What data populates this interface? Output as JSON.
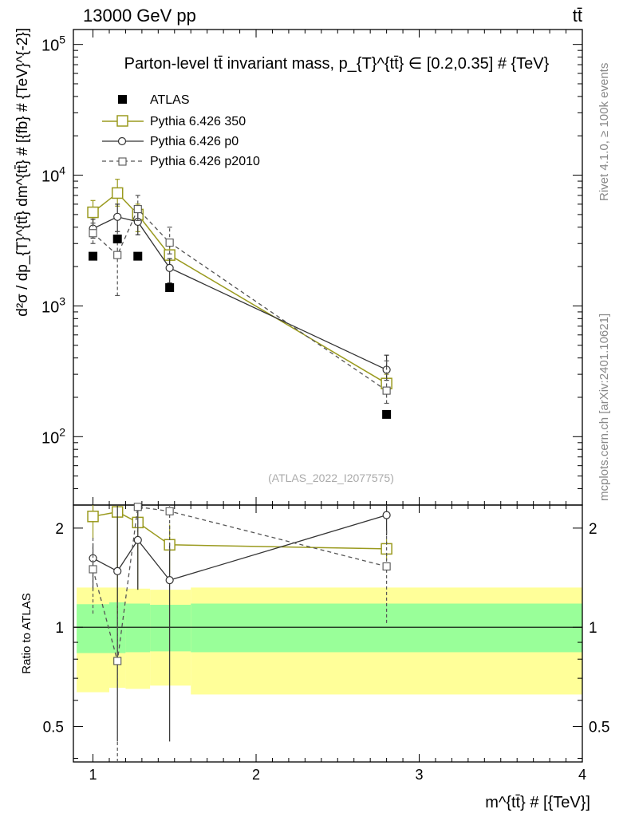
{
  "header": {
    "left": "13000 GeV pp",
    "right": "tt̄"
  },
  "side_texts": {
    "rivet": "Rivet 4.1.0, ≥ 100k events",
    "mcplots": "mcplots.cern.ch [arXiv:2401.10621]"
  },
  "chart_data": {
    "type": "line",
    "title": "Parton-level tt̄ invariant mass, p_{T}^{tt̄} ∈ [0.2,0.35] # {TeV}",
    "watermark": "(ATLAS_2022_I2077575)",
    "xlabel": "m^{tt̄} # [{TeV}]",
    "ylabel": "d²σ / dp_{T}^{tt̄} dm^{tt̄} # [{fb} # {TeV}^{-2}]",
    "ratio_ylabel": "Ratio to ATLAS",
    "xlim": [
      0.88,
      4.0
    ],
    "ylim": [
      30,
      130000
    ],
    "yscale": "log",
    "ratio_ylim": [
      0.39,
      2.35
    ],
    "x_ticks": [
      1,
      2,
      3,
      4
    ],
    "y_tick_labels": [
      {
        "base": "10",
        "exp": "2",
        "value": 100
      },
      {
        "base": "10",
        "exp": "3",
        "value": 1000
      },
      {
        "base": "10",
        "exp": "4",
        "value": 10000
      },
      {
        "base": "10",
        "exp": "5",
        "value": 100000
      }
    ],
    "ratio_ticks": [
      0.5,
      1,
      2
    ],
    "x": [
      1.0,
      1.15,
      1.275,
      1.47,
      2.8
    ],
    "reference": {
      "name": "ATLAS",
      "values": [
        2400,
        3250,
        2400,
        1380,
        148
      ],
      "band_edges": [
        0.9,
        1.1,
        1.2,
        1.35,
        1.6,
        4.0
      ],
      "band_inner": [
        [
          0.835,
          1.175
        ],
        [
          0.835,
          1.19
        ],
        [
          0.84,
          1.18
        ],
        [
          0.845,
          1.17
        ],
        [
          0.84,
          1.18
        ]
      ],
      "band_outer": [
        [
          0.635,
          1.32
        ],
        [
          0.655,
          1.32
        ],
        [
          0.65,
          1.31
        ],
        [
          0.665,
          1.3
        ],
        [
          0.625,
          1.32
        ]
      ]
    },
    "series": [
      {
        "name": "Pythia 6.426 350",
        "color": "#9a9a1e",
        "marker": "square-open",
        "dash": "none",
        "values": [
          5200,
          7300,
          5000,
          2450,
          255
        ],
        "err_lo": [
          4100,
          5800,
          3700,
          2000,
          215
        ],
        "err_hi": [
          6400,
          9300,
          6000,
          2900,
          300
        ],
        "ratio": [
          2.17,
          2.24,
          2.08,
          1.78,
          1.73
        ],
        "ratio_err_lo": [
          1.85,
          1.1,
          1.3,
          1.45,
          1.6
        ],
        "ratio_err_hi": [
          2.35,
          2.35,
          2.3,
          2.05,
          1.85
        ]
      },
      {
        "name": "Pythia 6.426 p0",
        "color": "#333333",
        "marker": "circle-open",
        "dash": "none",
        "values": [
          3900,
          4800,
          4400,
          1950,
          325
        ],
        "err_lo": [
          3300,
          3700,
          3500,
          1500,
          270
        ],
        "err_hi": [
          4600,
          6000,
          5400,
          2300,
          420
        ],
        "ratio": [
          1.62,
          1.48,
          1.84,
          1.39,
          2.19
        ],
        "ratio_err_lo": [
          1.3,
          0.45,
          1.3,
          0.45,
          1.9
        ],
        "ratio_err_hi": [
          1.8,
          2.35,
          2.35,
          1.8,
          2.35
        ]
      },
      {
        "name": "Pythia 6.426 p2010",
        "color": "#555555",
        "marker": "square-open",
        "dash": "dashed",
        "values": [
          3600,
          2450,
          5500,
          3050,
          225
        ],
        "err_lo": [
          3000,
          1200,
          4500,
          2500,
          180
        ],
        "err_hi": [
          4300,
          3700,
          7000,
          4000,
          380
        ],
        "ratio": [
          1.5,
          0.79,
          2.32,
          2.25,
          1.53
        ],
        "ratio_err_lo": [
          1.1,
          0.39,
          1.9,
          1.7,
          1.03
        ],
        "ratio_err_hi": [
          1.9,
          1.2,
          2.35,
          2.35,
          2.0
        ]
      }
    ]
  }
}
